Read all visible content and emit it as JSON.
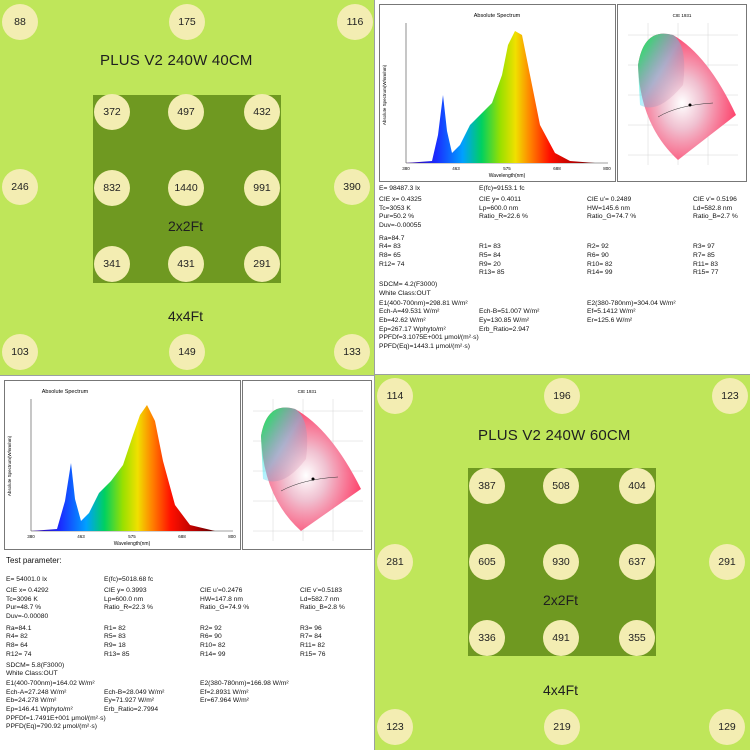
{
  "tl": {
    "title": "PLUS V2 240W    40CM",
    "inner_label": "2x2Ft",
    "outer_label": "4x4Ft",
    "outer": [
      "88",
      "175",
      "116",
      "246",
      "390",
      "103",
      "149",
      "133"
    ],
    "inner": [
      "372",
      "497",
      "432",
      "832",
      "1440",
      "991",
      "341",
      "431",
      "291"
    ]
  },
  "br": {
    "title": "PLUS V2 240W    60CM",
    "inner_label": "2x2Ft",
    "outer_label": "4x4Ft",
    "outer": [
      "114",
      "196",
      "123",
      "281",
      "291",
      "123",
      "219",
      "129"
    ],
    "inner": [
      "387",
      "508",
      "404",
      "605",
      "930",
      "637",
      "336",
      "491",
      "355"
    ]
  },
  "colors": {
    "green_bg": "#bfe65a",
    "inner_green": "#6f9921",
    "dot": "#f3edb2"
  },
  "tr": {
    "spectrum_title": "Absolute Spectrum",
    "y_axis": "Absolute Spectrum(W/nm/nm)",
    "x_axis": "Wavelength(nm)",
    "x_ticks": [
      "380",
      "463",
      "575",
      "688",
      "800"
    ],
    "cie_title": "CIE 1931",
    "lines": [
      [
        "E=  98487.3 lx",
        "E(fc)=9153.1 fc",
        "",
        ""
      ],
      [
        "CIE x= 0.4325",
        "CIE y= 0.4011",
        "CIE u'= 0.2489",
        "CIE v'= 0.5196"
      ],
      [
        "Tc=3053 K",
        "Lp=600.0 nm",
        "HW=145.6 nm",
        "Ld=582.8 nm"
      ],
      [
        "Pur=50.2 %",
        "Ratio_R=22.6 %",
        "Ratio_G=74.7 %",
        "Ratio_B=2.7 %"
      ],
      [
        "Duv=-0.00055",
        "",
        "",
        ""
      ],
      [
        "Ra=84.7",
        "",
        "",
        ""
      ],
      [
        "R4= 83",
        "R1= 83",
        "R2= 92",
        "R3= 97"
      ],
      [
        "R8= 65",
        "R5= 84",
        "R6= 90",
        "R7= 85"
      ],
      [
        "R12= 74",
        "R9= 20",
        "R10= 82",
        "R11= 83"
      ],
      [
        "",
        "R13= 85",
        "R14= 99",
        "R15= 77"
      ],
      [
        "SDCM= 4.2(F3000)",
        "",
        "",
        ""
      ],
      [
        "White Class:OUT",
        "",
        "",
        ""
      ],
      [
        "E1(400-700nm)=298.81 W/m²",
        "",
        "E2(380-780nm)=304.04 W/m²",
        ""
      ],
      [
        "Ech-A=49.531 W/m²",
        "Ech-B=51.007 W/m²",
        "Ef=5.1412 W/m²",
        ""
      ],
      [
        "Eb=42.62 W/m²",
        "Ey=130.85 W/m²",
        "Er=125.6 W/m²",
        ""
      ],
      [
        "Ep=267.17 Wphyto/m²",
        "Erb_Ratio=2.947",
        "",
        ""
      ],
      [
        "PPFDf=3.1075E+001 μmol/(m²·s)",
        "",
        "",
        ""
      ],
      [
        "PPFD(Eq)=1443.1 μmol/(m²·s)",
        "",
        "",
        ""
      ]
    ]
  },
  "bl": {
    "spectrum_title": "Absolute Spectrum",
    "y_axis": "Absolute Spectrum(W/nm/nm)",
    "x_axis": "Wavelength(nm)",
    "x_ticks": [
      "380",
      "463",
      "575",
      "688",
      "800"
    ],
    "cie_title": "CIE 1931",
    "header": "Test parameter:",
    "lines": [
      [
        "E=  54001.0 lx",
        "E(fc)=5018.68 fc",
        "",
        ""
      ],
      [
        "CIE x= 0.4292",
        "CIE y= 0.3993",
        "CIE u'=0.2476",
        "CIE v'=0.5183"
      ],
      [
        "Tc=3096 K",
        "Lp=600.0 nm",
        "HW=147.8 nm",
        "Ld=582.7 nm"
      ],
      [
        "Pur=48.7 %",
        "Ratio_R=22.3 %",
        "Ratio_G=74.9 %",
        "Ratio_B=2.8 %"
      ],
      [
        "Duv=-0.00080",
        "",
        "",
        ""
      ],
      [
        "Ra=84.1",
        "R1= 82",
        "R2= 92",
        "R3= 96"
      ],
      [
        "R4= 82",
        "R5= 83",
        "R6= 90",
        "R7= 84"
      ],
      [
        "R8= 64",
        "R9= 18",
        "R10= 82",
        "R11= 82"
      ],
      [
        "R12= 74",
        "R13= 85",
        "R14= 99",
        "R15= 76"
      ],
      [
        "SDCM= 5.8(F3000)",
        "",
        "",
        ""
      ],
      [
        "White Class:OUT",
        "",
        "",
        ""
      ],
      [
        "E1(400-700nm)=164.02 W/m²",
        "",
        "E2(380-780nm)=166.98 W/m²",
        ""
      ],
      [
        "Ech-A=27.248 W/m²",
        "Ech-B=28.049 W/m²",
        "Ef=2.8931 W/m²",
        ""
      ],
      [
        "Eb=24.278 W/m²",
        "Ey=71.927 W/m²",
        "Er=67.964 W/m²",
        ""
      ],
      [
        "Ep=146.41 Wphyto/m²",
        "Erb_Ratio=2.7994",
        "",
        ""
      ],
      [
        "PPFDf=1.7491E+001 μmol/(m²·s)",
        "",
        "",
        ""
      ],
      [
        "PPFD(Eq)=790.92 μmol/(m²·s)",
        "",
        "",
        ""
      ]
    ]
  }
}
